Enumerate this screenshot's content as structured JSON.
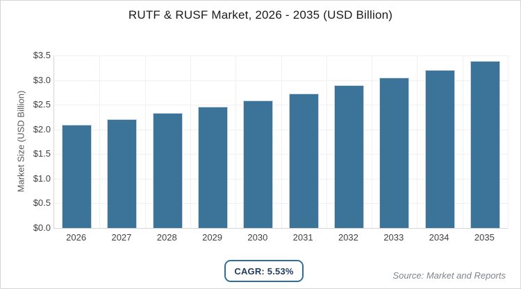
{
  "title": "RUTF & RUSF Market, 2026 - 2035 (USD Billion)",
  "chart_data": {
    "type": "bar",
    "title": "RUTF & RUSF Market, 2026 - 2035 (USD Billion)",
    "categories": [
      "2026",
      "2027",
      "2028",
      "2029",
      "2030",
      "2031",
      "2032",
      "2033",
      "2034",
      "2035"
    ],
    "values": [
      2.09,
      2.21,
      2.33,
      2.46,
      2.59,
      2.73,
      2.89,
      3.05,
      3.21,
      3.39
    ],
    "xlabel": "",
    "ylabel": "Market Size (USD Billion)",
    "ylim": [
      0,
      3.5
    ],
    "ytick_step": 0.5,
    "ytick_labels": [
      "$0.0",
      "$0.5",
      "$1.0",
      "$1.5",
      "$2.0",
      "$2.5",
      "$3.0",
      "$3.5"
    ],
    "grid": true,
    "legend": "none",
    "bar_width_ratio": 0.66
  },
  "footer": {
    "cagr_label": "CAGR: 5.53%",
    "source": "Source: Market and Reports"
  },
  "colors": {
    "bar": "#3b7399",
    "bar_border": "#ccd8e1",
    "grid": "#f0f0f0",
    "axis": "#d4d4d4",
    "tick_text": "#404040",
    "title_text": "#1a1a1a",
    "ylabel_text": "#595959",
    "badge_border": "#2d6e9e",
    "badge_text": "#1e3c5c",
    "source_text": "#7d868c",
    "frame_border": "#d5d5d5"
  }
}
